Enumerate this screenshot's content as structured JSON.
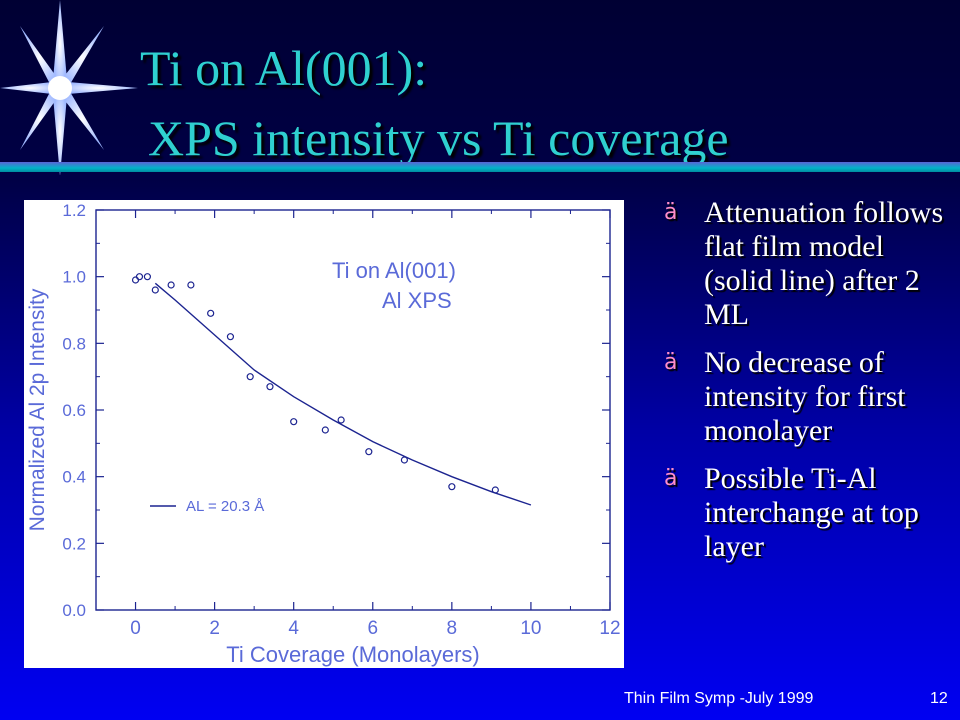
{
  "title": {
    "line1": "Ti on Al(001):",
    "line2": "XPS intensity vs Ti coverage"
  },
  "colors": {
    "title": "#2fd0d0",
    "rule": "#00b5c8",
    "bullet_icon": "#ff8fc8",
    "plot_text": "#5a6ad8",
    "plot_marks": "#1c2490"
  },
  "bullets": [
    {
      "icon": "ä",
      "text": "Attenuation follows flat film model (solid line) after 2 ML"
    },
    {
      "icon": "ä",
      "text": "No decrease of intensity for first monolayer"
    },
    {
      "icon": "ä",
      "text": "Possible Ti-Al interchange at top layer"
    }
  ],
  "footer": {
    "text": "Thin Film  Symp -July 1999",
    "page_number": "12"
  },
  "chart_data": {
    "type": "scatter",
    "annotation_lines": [
      "Ti on Al(001)",
      "Al XPS"
    ],
    "xlabel": "Ti Coverage (Monolayers)",
    "ylabel": "Normalized Al 2p Intensity",
    "xlim": [
      -1,
      12
    ],
    "ylim": [
      0.0,
      1.2
    ],
    "x_ticks": [
      "0",
      "2",
      "4",
      "6",
      "8",
      "10",
      "12"
    ],
    "y_ticks": [
      "0.0",
      "0.2",
      "0.4",
      "0.6",
      "0.8",
      "1.0",
      "1.2"
    ],
    "grid": false,
    "series": [
      {
        "kind": "points",
        "x": [
          0.0,
          0.1,
          0.3,
          0.5,
          0.9,
          1.4,
          1.9,
          2.4,
          2.9,
          3.4,
          4.0,
          4.8,
          5.2,
          5.9,
          6.8,
          8.0,
          9.1
        ],
        "y": [
          0.99,
          1.0,
          1.0,
          0.96,
          0.975,
          0.975,
          0.89,
          0.82,
          0.7,
          0.67,
          0.565,
          0.54,
          0.57,
          0.475,
          0.45,
          0.37,
          0.36
        ]
      },
      {
        "name": "AL = 20.3 Å",
        "kind": "line",
        "x": [
          0.5,
          1,
          2,
          3,
          4,
          5,
          6,
          7,
          8,
          9,
          10
        ],
        "y": [
          0.98,
          0.93,
          0.825,
          0.72,
          0.64,
          0.57,
          0.505,
          0.45,
          0.4,
          0.355,
          0.315
        ]
      }
    ],
    "legend": {
      "label": "AL = 20.3 Å",
      "placement": "lower-left"
    }
  }
}
